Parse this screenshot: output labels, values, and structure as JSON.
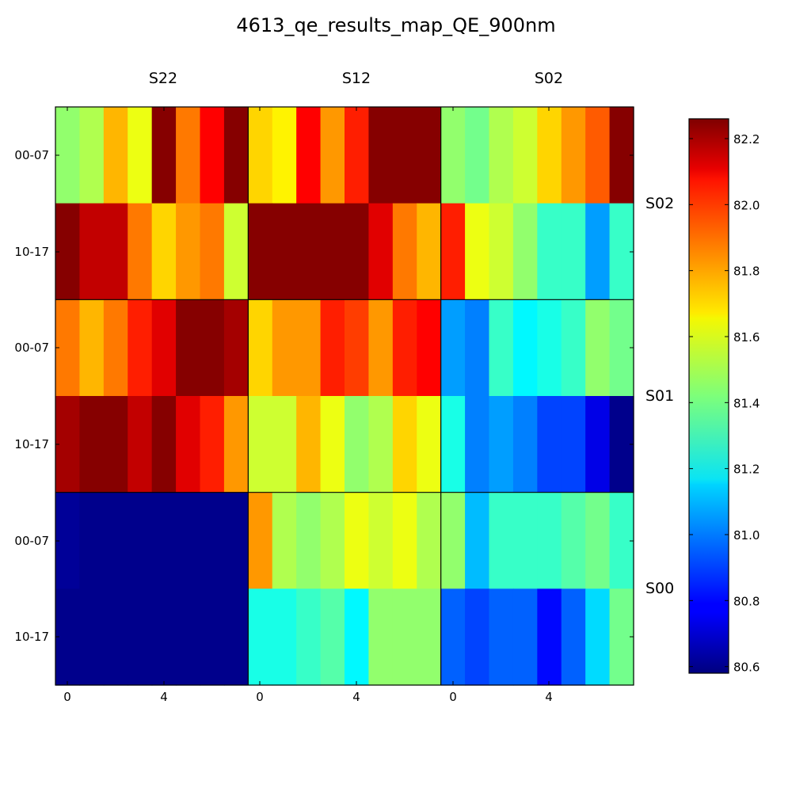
{
  "chart_data": {
    "type": "heatmap",
    "title": "4613_qe_results_map_QE_900nm",
    "column_labels": [
      "S22",
      "S12",
      "S02"
    ],
    "row_group_labels": [
      "S02",
      "S01",
      "S00"
    ],
    "row_tick_labels": [
      "00-07",
      "10-17",
      "00-07",
      "10-17",
      "00-07",
      "10-17"
    ],
    "x_tick_labels": [
      "0",
      "4",
      "0",
      "4",
      "0",
      "4"
    ],
    "colorbar": {
      "min": 80.58,
      "max": 82.26,
      "ticks": [
        "80.6",
        "80.8",
        "81.0",
        "81.2",
        "81.4",
        "81.6",
        "81.8",
        "82.0",
        "82.2"
      ]
    },
    "values": [
      [
        81.45,
        81.5,
        81.75,
        81.6,
        82.25,
        81.85,
        82.05,
        82.25,
        81.7,
        81.65,
        82.05,
        81.8,
        82.0,
        82.25,
        82.25,
        82.25,
        81.45,
        81.4,
        81.5,
        81.55,
        81.7,
        81.8,
        81.9,
        82.25
      ],
      [
        82.25,
        82.15,
        82.15,
        81.85,
        81.7,
        81.8,
        81.85,
        81.55,
        82.25,
        82.25,
        82.25,
        82.25,
        82.25,
        82.1,
        81.85,
        81.75,
        82.0,
        81.6,
        81.55,
        81.45,
        81.3,
        81.3,
        81.05,
        81.3
      ],
      [
        81.85,
        81.75,
        81.85,
        82.0,
        82.1,
        82.25,
        82.25,
        82.2,
        81.7,
        81.8,
        81.8,
        82.0,
        81.95,
        81.8,
        82.0,
        82.05,
        81.05,
        81.0,
        81.3,
        81.2,
        81.25,
        81.3,
        81.45,
        81.4
      ],
      [
        82.2,
        82.25,
        82.25,
        82.15,
        82.25,
        82.1,
        82.0,
        81.8,
        81.55,
        81.55,
        81.75,
        81.6,
        81.45,
        81.5,
        81.7,
        81.6,
        81.25,
        81.0,
        81.05,
        81.0,
        80.9,
        80.9,
        80.75,
        80.6
      ],
      [
        80.62,
        80.6,
        80.6,
        80.6,
        80.6,
        80.6,
        80.6,
        80.6,
        81.8,
        81.5,
        81.45,
        81.5,
        81.6,
        81.55,
        81.6,
        81.5,
        81.45,
        81.1,
        81.3,
        81.3,
        81.3,
        81.35,
        81.4,
        81.3
      ],
      [
        80.6,
        80.6,
        80.6,
        80.6,
        80.6,
        80.6,
        80.6,
        80.6,
        81.25,
        81.25,
        81.3,
        81.35,
        81.2,
        81.45,
        81.45,
        81.45,
        80.95,
        80.9,
        80.95,
        80.95,
        80.8,
        80.95,
        81.15,
        81.4
      ]
    ]
  }
}
